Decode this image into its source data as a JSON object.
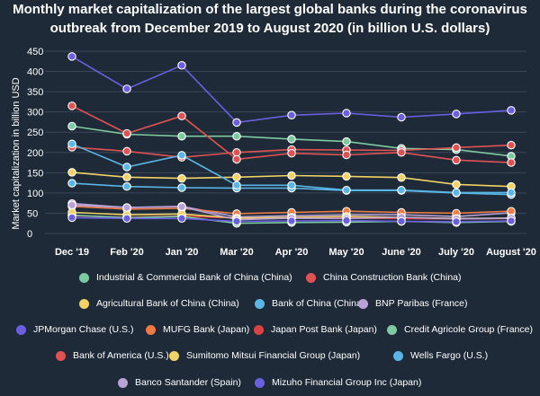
{
  "chart_data": {
    "type": "line",
    "title_line1": "Monthly market capitalization of the largest global banks during the coronavirus",
    "title_line2": "outbreak from December 2019 to August 2020 (in billion U.S. dollars)",
    "xlabel": "",
    "ylabel": "Market capitalization in billion USD",
    "ylim": [
      0,
      450
    ],
    "yticks": [
      0,
      50,
      100,
      150,
      200,
      250,
      300,
      350,
      400,
      450
    ],
    "categories": [
      "Dec '19",
      "Feb '20",
      "Jan '20",
      "Mar '20",
      "Apr '20",
      "May '20",
      "June '20",
      "July '20",
      "August '20"
    ],
    "series": [
      {
        "name": "Industrial & Commercial Bank of China (China)",
        "color": "#7dc9a0",
        "values": [
          265,
          245,
          240,
          240,
          233,
          227,
          210,
          207,
          191
        ]
      },
      {
        "name": "China Construction Bank (China)",
        "color": "#e05252",
        "values": [
          213,
          203,
          188,
          200,
          207,
          206,
          205,
          212,
          218
        ]
      },
      {
        "name": "Agricultural Bank of China (China)",
        "color": "#f2d266",
        "values": [
          151,
          139,
          136,
          139,
          143,
          141,
          138,
          121,
          116
        ]
      },
      {
        "name": "Bank of China (China)",
        "color": "#5bb6e8",
        "values": [
          124,
          116,
          113,
          112,
          112,
          106,
          106,
          100,
          96
        ]
      },
      {
        "name": "BNP Paribas (France)",
        "color": "#b9a2d6",
        "values": [
          74,
          64,
          67,
          41,
          44,
          46,
          46,
          42,
          51
        ]
      },
      {
        "name": "JPMorgan Chase (U.S.)",
        "color": "#6a5fe0",
        "values": [
          437,
          357,
          415,
          274,
          292,
          297,
          287,
          295,
          304
        ]
      },
      {
        "name": "MUFG Bank (Japan)",
        "color": "#f07a43",
        "values": [
          67,
          60,
          62,
          49,
          52,
          55,
          52,
          50,
          55
        ]
      },
      {
        "name": "Japan Post Bank (Japan)",
        "color": "#d94242",
        "values": [
          44,
          40,
          43,
          38,
          38,
          38,
          37,
          36,
          37
        ]
      },
      {
        "name": "Credit Agricole Group (France)",
        "color": "#7dc9a0",
        "values": [
          45,
          39,
          42,
          25,
          27,
          28,
          30,
          27,
          30
        ]
      },
      {
        "name": "Bank of America (U.S.)",
        "color": "#e05252",
        "values": [
          315,
          247,
          290,
          183,
          198,
          194,
          200,
          181,
          175
        ]
      },
      {
        "name": "Sumitomo Mitsui Financial Group (Japan)",
        "color": "#f2d266",
        "values": [
          52,
          46,
          48,
          38,
          40,
          42,
          40,
          37,
          38
        ]
      },
      {
        "name": "Wells Fargo (U.S.)",
        "color": "#5bb6e8",
        "values": [
          221,
          164,
          193,
          119,
          119,
          107,
          107,
          101,
          101
        ]
      },
      {
        "name": "Banco Santander (Spain)",
        "color": "#b9a2d6",
        "values": [
          70,
          64,
          66,
          34,
          38,
          37,
          40,
          36,
          38
        ]
      },
      {
        "name": "Mizuho Financial Group Inc (Japan)",
        "color": "#6a5fe0",
        "values": [
          39,
          37,
          37,
          30,
          31,
          32,
          30,
          29,
          31
        ]
      }
    ]
  }
}
